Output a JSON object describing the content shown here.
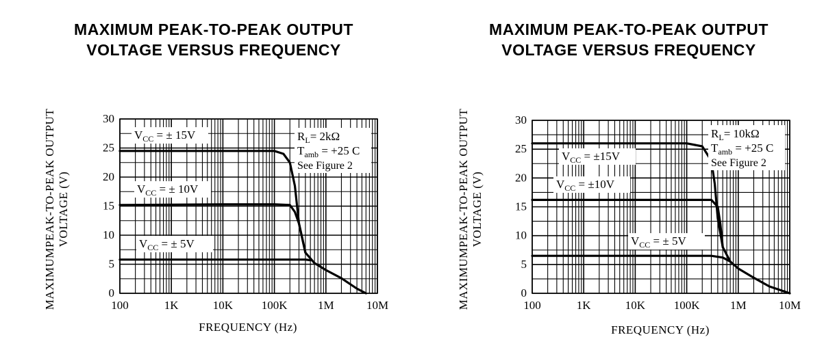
{
  "chart_data": [
    {
      "type": "line",
      "title_lines": [
        "MAXIMUM PEAK-TO-PEAK OUTPUT",
        "VOLTAGE VERSUS FREQUENCY"
      ],
      "xlabel": "FREQUENCY (Hz)",
      "ylabel_lines": [
        "MAXIMUMPEAK-TO-PEAK OUTPUT",
        "VOLTAGE (V)"
      ],
      "x_scale": "log",
      "xlim": [
        100,
        10000000
      ],
      "ylim": [
        0,
        30
      ],
      "x_ticks": [
        {
          "v": 100,
          "label": "100"
        },
        {
          "v": 1000,
          "label": "1K"
        },
        {
          "v": 10000,
          "label": "10K"
        },
        {
          "v": 100000,
          "label": "100K"
        },
        {
          "v": 1000000,
          "label": "1M"
        },
        {
          "v": 10000000,
          "label": "10M"
        }
      ],
      "y_ticks": [
        {
          "v": 0,
          "label": "0"
        },
        {
          "v": 5,
          "label": "5"
        },
        {
          "v": 10,
          "label": "10"
        },
        {
          "v": 15,
          "label": "15"
        },
        {
          "v": 20,
          "label": "20"
        },
        {
          "v": 25,
          "label": "25"
        },
        {
          "v": 30,
          "label": "30"
        }
      ],
      "grid": true,
      "conditions": {
        "rl": "2kΩ",
        "tamb": "+25 C",
        "see": "See Figure 2"
      },
      "series": [
        {
          "label": "± 15V",
          "x": [
            100,
            10000,
            100000,
            150000,
            200000,
            250000,
            300000,
            400000,
            600000,
            1000000,
            2000000,
            4000000,
            6000000
          ],
          "y": [
            24.5,
            24.5,
            24.5,
            24,
            22.5,
            18.5,
            12,
            7,
            5.2,
            4,
            2.6,
            0.8,
            0
          ]
        },
        {
          "label": "± 10V",
          "x": [
            100,
            10000,
            100000,
            200000,
            250000,
            300000,
            400000
          ],
          "y": [
            15.2,
            15.3,
            15.3,
            15.2,
            14,
            12,
            7
          ]
        },
        {
          "label": "± 5V",
          "x": [
            100,
            10000,
            100000,
            400000,
            500000
          ],
          "y": [
            5.8,
            5.8,
            5.8,
            5.8,
            5.7
          ]
        }
      ]
    },
    {
      "type": "line",
      "title_lines": [
        "MAXIMUM PEAK-TO-PEAK OUTPUT",
        "VOLTAGE VERSUS FREQUENCY"
      ],
      "xlabel": "FREQUENCY (Hz)",
      "ylabel_lines": [
        "MAXIMUMPEAK-TO-PEAK OUTPUT",
        "VOLTAGE (V)"
      ],
      "x_scale": "log",
      "xlim": [
        100,
        10000000
      ],
      "ylim": [
        0,
        30
      ],
      "x_ticks": [
        {
          "v": 100,
          "label": "100"
        },
        {
          "v": 1000,
          "label": "1K"
        },
        {
          "v": 10000,
          "label": "10K"
        },
        {
          "v": 100000,
          "label": "100K"
        },
        {
          "v": 1000000,
          "label": "1M"
        },
        {
          "v": 10000000,
          "label": "10M"
        }
      ],
      "y_ticks": [
        {
          "v": 0,
          "label": "0"
        },
        {
          "v": 5,
          "label": "5"
        },
        {
          "v": 10,
          "label": "10"
        },
        {
          "v": 15,
          "label": "15"
        },
        {
          "v": 20,
          "label": "20"
        },
        {
          "v": 25,
          "label": "25"
        },
        {
          "v": 30,
          "label": "30"
        }
      ],
      "grid": true,
      "conditions": {
        "rl": "10kΩ",
        "tamb": "+25 C",
        "see": "See Figure 2"
      },
      "series": [
        {
          "label": "±15V",
          "x": [
            100,
            10000,
            100000,
            200000,
            300000,
            350000,
            400000,
            500000,
            700000,
            1000000,
            2000000,
            4000000,
            10000000
          ],
          "y": [
            26,
            26,
            26,
            25.5,
            23,
            19,
            13,
            8,
            5.5,
            4.3,
            2.7,
            1.2,
            0
          ]
        },
        {
          "label": "±10V",
          "x": [
            100,
            10000,
            100000,
            300000,
            400000,
            450000,
            500000
          ],
          "y": [
            16.2,
            16.2,
            16.2,
            16.2,
            15,
            12,
            8
          ]
        },
        {
          "label": "± 5V",
          "x": [
            100,
            10000,
            100000,
            300000,
            500000,
            700000
          ],
          "y": [
            6.5,
            6.5,
            6.5,
            6.5,
            6.2,
            5.5
          ]
        }
      ]
    }
  ]
}
